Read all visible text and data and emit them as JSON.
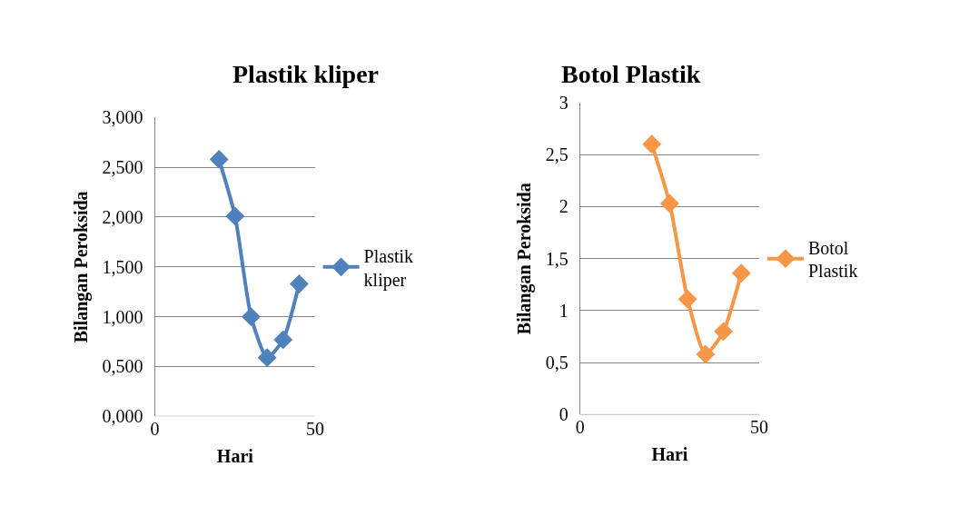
{
  "chart_data": [
    {
      "type": "line",
      "title": "Plastik kliper",
      "xlabel": "Hari",
      "ylabel": "Bilangan Peroksida",
      "x": [
        20,
        25,
        30,
        35,
        40,
        45
      ],
      "series": [
        {
          "name": "Plastik kliper",
          "color": "#4f81bd",
          "values": [
            2.58,
            2.01,
            1.0,
            0.59,
            0.77,
            1.33
          ]
        }
      ],
      "xlim": [
        0,
        50
      ],
      "xticks": [
        0,
        50
      ],
      "ylim": [
        0,
        3
      ],
      "yticks": [
        {
          "value": 0,
          "label": "0,000"
        },
        {
          "value": 0.5,
          "label": "0,500"
        },
        {
          "value": 1,
          "label": "1,000"
        },
        {
          "value": 1.5,
          "label": "1,500"
        },
        {
          "value": 2,
          "label": "2,000"
        },
        {
          "value": 2.5,
          "label": "2,500"
        },
        {
          "value": 3,
          "label": "3,000"
        }
      ],
      "grid": "y",
      "legend": "right",
      "marker": "diamond",
      "line_style": "solid"
    },
    {
      "type": "line",
      "title": "Botol Plastik",
      "xlabel": "Hari",
      "ylabel": "Bilangan Peroksida",
      "x": [
        20,
        25,
        30,
        35,
        40,
        45
      ],
      "series": [
        {
          "name": "Botol Plastik",
          "color": "#f79646",
          "values": [
            2.6,
            2.03,
            1.11,
            0.58,
            0.8,
            1.36
          ]
        }
      ],
      "xlim": [
        0,
        50
      ],
      "xticks": [
        0,
        50
      ],
      "ylim": [
        0,
        3
      ],
      "yticks": [
        0,
        {
          "value": 0.5,
          "label": "0,5"
        },
        1,
        {
          "value": 1.5,
          "label": "1,5"
        },
        2,
        {
          "value": 2.5,
          "label": "2,5"
        },
        3
      ],
      "grid": "y",
      "legend": "right",
      "marker": "diamond",
      "line_style": "solid"
    }
  ]
}
